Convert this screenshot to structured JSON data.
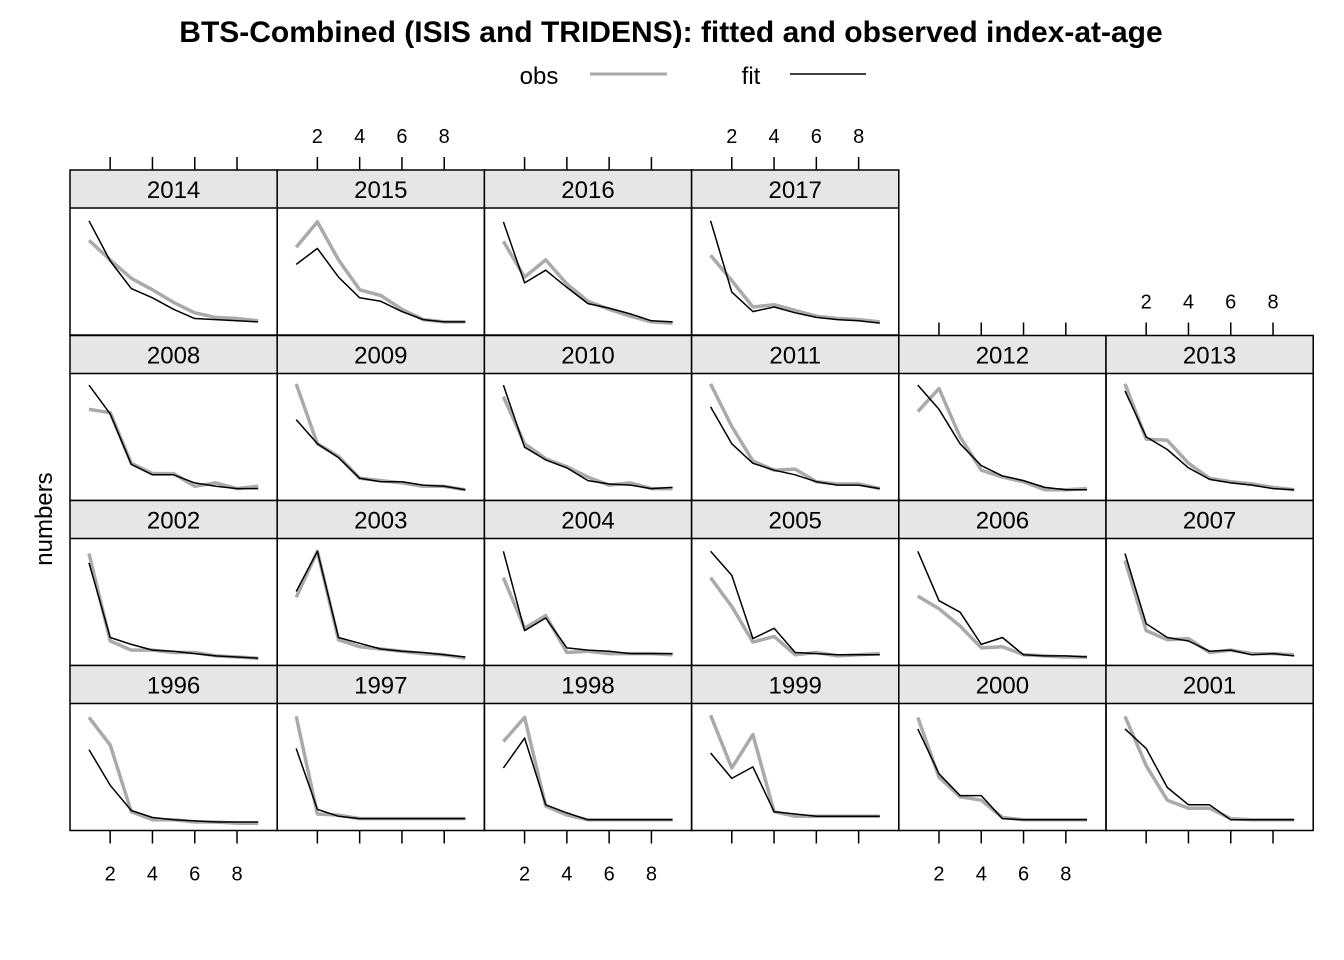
{
  "chart_data": {
    "type": "line",
    "title": "BTS-Combined (ISIS and TRIDENS): fitted and observed index-at-age",
    "ylabel": "numbers",
    "xlabel": "",
    "x": [
      1,
      2,
      3,
      4,
      5,
      6,
      7,
      8,
      9
    ],
    "xlim": [
      0.1,
      9.9
    ],
    "x_ticks": [
      2,
      4,
      6,
      8
    ],
    "y_axis": "relative (no tick labels)",
    "legend": {
      "placement": "top",
      "entries": [
        {
          "label": "obs",
          "color": "#aaaaaa"
        },
        {
          "label": "fit",
          "color": "#000000"
        }
      ]
    },
    "rows": [
      [
        "2014",
        "2015",
        "2016",
        "2017"
      ],
      [
        "2008",
        "2009",
        "2010",
        "2011",
        "2012",
        "2013"
      ],
      [
        "2002",
        "2003",
        "2004",
        "2005",
        "2006",
        "2007"
      ],
      [
        "1996",
        "1997",
        "1998",
        "1999",
        "2000",
        "2001"
      ]
    ],
    "panels": {
      "2014": {
        "obs": [
          78,
          61,
          45,
          35,
          24,
          15,
          11,
          10,
          8
        ],
        "fit": [
          95,
          60,
          36,
          28,
          18,
          10,
          9,
          8,
          7
        ]
      },
      "2015": {
        "obs": [
          72,
          94,
          61,
          35,
          30,
          18,
          9,
          7,
          7
        ],
        "fit": [
          57,
          71,
          46,
          28,
          25,
          16,
          9,
          7,
          7
        ]
      },
      "2016": {
        "obs": [
          77,
          46,
          61,
          40,
          25,
          18,
          12,
          7,
          6
        ],
        "fit": [
          94,
          41,
          52,
          37,
          23,
          19,
          14,
          8,
          7
        ]
      },
      "2017": {
        "obs": [
          65,
          43,
          20,
          22,
          17,
          12,
          10,
          9,
          7
        ],
        "fit": [
          95,
          33,
          16,
          20,
          15,
          11,
          9,
          8,
          6
        ]
      },
      "2008": {
        "obs": [
          75,
          72,
          28,
          19,
          19,
          8,
          11,
          6,
          8
        ],
        "fit": [
          96,
          71,
          27,
          18,
          18,
          11,
          8,
          6,
          6
        ]
      },
      "2009": {
        "obs": [
          97,
          45,
          34,
          15,
          13,
          11,
          8,
          8,
          5
        ],
        "fit": [
          66,
          45,
          33,
          15,
          12,
          12,
          9,
          8,
          5
        ]
      },
      "2010": {
        "obs": [
          86,
          45,
          32,
          25,
          16,
          9,
          11,
          6,
          6
        ],
        "fit": [
          96,
          42,
          31,
          24,
          13,
          10,
          9,
          6,
          7
        ]
      },
      "2011": {
        "obs": [
          97,
          60,
          30,
          22,
          23,
          12,
          10,
          10,
          6
        ],
        "fit": [
          77,
          45,
          28,
          22,
          18,
          12,
          9,
          9,
          6
        ]
      },
      "2012": {
        "obs": [
          73,
          93,
          51,
          22,
          16,
          12,
          5,
          5,
          6
        ],
        "fit": [
          96,
          75,
          45,
          26,
          17,
          13,
          7,
          5,
          5
        ]
      },
      "2013": {
        "obs": [
          97,
          49,
          48,
          28,
          15,
          12,
          10,
          7,
          5
        ],
        "fit": [
          91,
          51,
          40,
          24,
          14,
          11,
          9,
          6,
          5
        ]
      },
      "2002": {
        "obs": [
          93,
          17,
          9,
          9,
          7,
          7,
          4,
          3,
          2
        ],
        "fit": [
          85,
          20,
          14,
          9,
          8,
          6,
          4,
          3,
          2
        ]
      },
      "2003": {
        "obs": [
          55,
          95,
          18,
          12,
          10,
          8,
          6,
          5,
          2
        ],
        "fit": [
          60,
          95,
          20,
          15,
          10,
          8,
          7,
          5,
          3
        ]
      },
      "2004": {
        "obs": [
          72,
          28,
          39,
          7,
          8,
          6,
          6,
          6,
          5
        ],
        "fit": [
          95,
          26,
          37,
          11,
          9,
          8,
          6,
          6,
          6
        ]
      },
      "2005": {
        "obs": [
          72,
          47,
          16,
          21,
          5,
          7,
          4,
          5,
          6
        ],
        "fit": [
          95,
          74,
          19,
          28,
          7,
          6,
          5,
          5,
          5
        ]
      },
      "2006": {
        "obs": [
          56,
          45,
          30,
          11,
          12,
          5,
          4,
          3,
          3
        ],
        "fit": [
          95,
          52,
          42,
          14,
          20,
          5,
          4,
          4,
          3
        ]
      },
      "2007": {
        "obs": [
          87,
          26,
          18,
          19,
          7,
          9,
          6,
          6,
          5
        ],
        "fit": [
          93,
          32,
          20,
          17,
          8,
          9,
          5,
          6,
          4
        ]
      },
      "1996": {
        "obs": [
          94,
          70,
          12,
          5,
          5,
          3,
          3,
          2,
          2
        ],
        "fit": [
          66,
          35,
          13,
          7,
          5,
          4,
          3,
          3,
          3
        ]
      },
      "1997": {
        "obs": [
          95,
          10,
          9,
          6,
          6,
          6,
          6,
          6,
          6
        ],
        "fit": [
          67,
          14,
          8,
          6,
          6,
          6,
          6,
          6,
          6
        ]
      },
      "1998": {
        "obs": [
          73,
          94,
          17,
          9,
          5,
          5,
          5,
          5,
          5
        ],
        "fit": [
          50,
          76,
          18,
          11,
          5,
          5,
          5,
          5,
          5
        ]
      },
      "1999": {
        "obs": [
          96,
          50,
          79,
          12,
          8,
          8,
          8,
          8,
          8
        ],
        "fit": [
          63,
          41,
          51,
          12,
          10,
          8,
          8,
          8,
          8
        ]
      },
      "2000": {
        "obs": [
          94,
          42,
          25,
          22,
          7,
          5,
          5,
          5,
          5
        ],
        "fit": [
          84,
          45,
          26,
          26,
          6,
          5,
          5,
          5,
          5
        ]
      },
      "2001": {
        "obs": [
          95,
          52,
          22,
          15,
          15,
          6,
          5,
          5,
          5
        ],
        "fit": [
          84,
          67,
          33,
          18,
          18,
          5,
          5,
          5,
          5
        ]
      }
    }
  }
}
